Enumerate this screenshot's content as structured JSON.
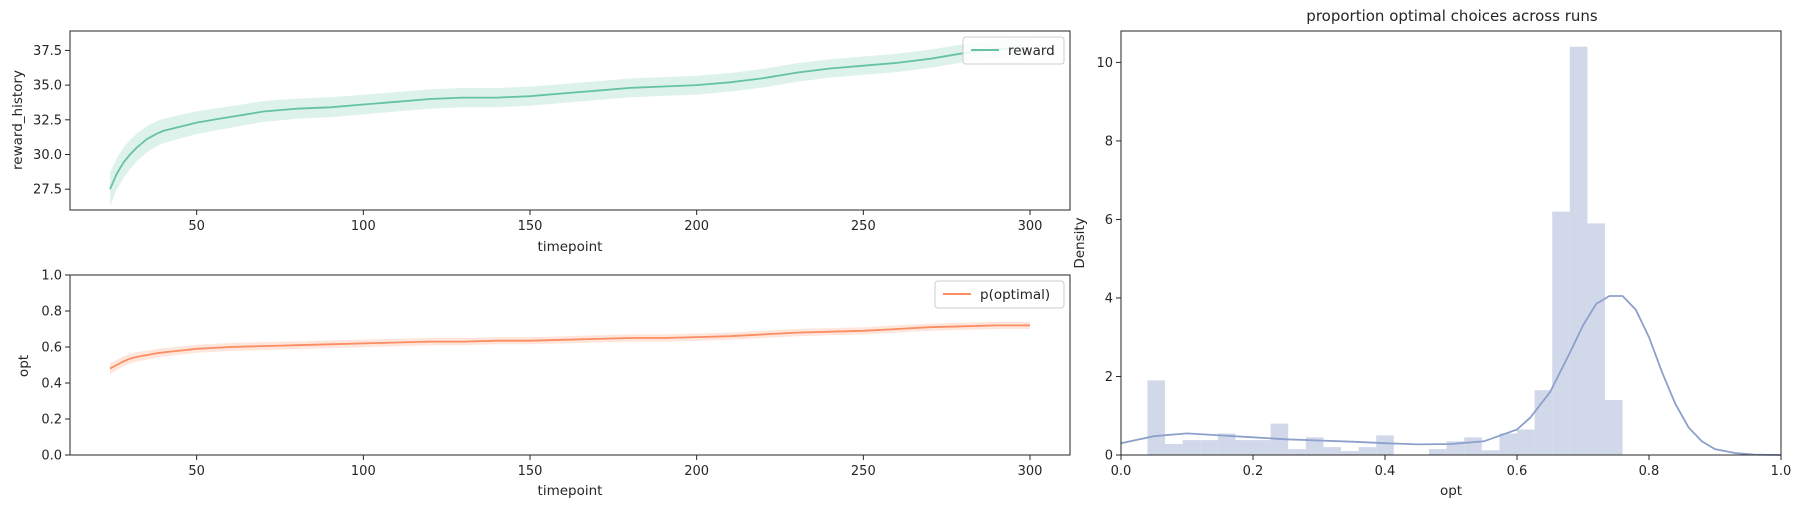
{
  "chart_data": [
    {
      "type": "line",
      "xlabel": "timepoint",
      "ylabel": "reward_history",
      "xlim": [
        12,
        312
      ],
      "ylim": [
        26,
        38.9
      ],
      "xticks": [
        50,
        100,
        150,
        200,
        250,
        300
      ],
      "yticks": [
        27.5,
        30.0,
        32.5,
        35.0,
        37.5
      ],
      "ytick_labels": [
        "27.5",
        "30.0",
        "32.5",
        "35.0",
        "37.5"
      ],
      "legend": "top-right",
      "series": [
        {
          "name": "reward",
          "color": "#66c2a5",
          "band": "confidence interval",
          "x": [
            24,
            26,
            28,
            30,
            32,
            35,
            38,
            40,
            45,
            50,
            55,
            60,
            65,
            70,
            75,
            80,
            90,
            100,
            110,
            120,
            130,
            140,
            150,
            160,
            170,
            180,
            190,
            200,
            210,
            220,
            230,
            240,
            250,
            260,
            270,
            280,
            290,
            300
          ],
          "y": [
            27.5,
            28.6,
            29.4,
            30.0,
            30.5,
            31.1,
            31.5,
            31.7,
            32.0,
            32.3,
            32.5,
            32.7,
            32.9,
            33.1,
            33.2,
            33.3,
            33.4,
            33.6,
            33.8,
            34.0,
            34.1,
            34.1,
            34.2,
            34.4,
            34.6,
            34.8,
            34.9,
            35.0,
            35.2,
            35.5,
            35.9,
            36.2,
            36.4,
            36.6,
            36.9,
            37.3,
            37.6,
            37.7
          ],
          "ci": [
            1.2,
            1.15,
            1.1,
            1.05,
            1.0,
            0.95,
            0.9,
            0.88,
            0.85,
            0.82,
            0.8,
            0.78,
            0.76,
            0.75,
            0.74,
            0.73,
            0.72,
            0.71,
            0.7,
            0.7,
            0.69,
            0.69,
            0.69,
            0.68,
            0.68,
            0.68,
            0.68,
            0.68,
            0.67,
            0.67,
            0.67,
            0.66,
            0.66,
            0.66,
            0.66,
            0.65,
            0.65,
            0.65
          ]
        }
      ]
    },
    {
      "type": "line",
      "xlabel": "timepoint",
      "ylabel": "opt",
      "xlim": [
        12,
        312
      ],
      "ylim": [
        0,
        1
      ],
      "xticks": [
        50,
        100,
        150,
        200,
        250,
        300
      ],
      "yticks": [
        0.0,
        0.2,
        0.4,
        0.6,
        0.8,
        1.0
      ],
      "ytick_labels": [
        "0.0",
        "0.2",
        "0.4",
        "0.6",
        "0.8",
        "1.0"
      ],
      "legend": "top-right",
      "series": [
        {
          "name": "p(optimal)",
          "color": "#fc8d62",
          "band": "confidence interval",
          "x": [
            24,
            26,
            28,
            30,
            32,
            35,
            38,
            40,
            45,
            50,
            55,
            60,
            70,
            80,
            90,
            100,
            110,
            120,
            130,
            140,
            150,
            160,
            170,
            180,
            190,
            200,
            210,
            220,
            230,
            240,
            250,
            260,
            270,
            280,
            290,
            300
          ],
          "y": [
            0.48,
            0.5,
            0.52,
            0.535,
            0.545,
            0.555,
            0.565,
            0.57,
            0.58,
            0.59,
            0.595,
            0.6,
            0.605,
            0.61,
            0.615,
            0.62,
            0.625,
            0.63,
            0.63,
            0.635,
            0.635,
            0.64,
            0.645,
            0.65,
            0.65,
            0.655,
            0.66,
            0.67,
            0.68,
            0.685,
            0.69,
            0.7,
            0.71,
            0.715,
            0.72,
            0.72
          ],
          "ci": [
            0.03,
            0.029,
            0.028,
            0.027,
            0.026,
            0.025,
            0.024,
            0.024,
            0.023,
            0.023,
            0.022,
            0.022,
            0.022,
            0.021,
            0.021,
            0.021,
            0.021,
            0.02,
            0.02,
            0.02,
            0.02,
            0.02,
            0.02,
            0.02,
            0.02,
            0.02,
            0.02,
            0.02,
            0.02,
            0.02,
            0.02,
            0.02,
            0.02,
            0.02,
            0.02,
            0.02
          ]
        }
      ]
    },
    {
      "type": "histogram",
      "title": "proportion optimal choices across runs",
      "xlabel": "opt",
      "ylabel": "Density",
      "xlim": [
        0,
        1
      ],
      "ylim": [
        0,
        10.8
      ],
      "xticks": [
        0.0,
        0.2,
        0.4,
        0.6,
        0.8,
        1.0
      ],
      "xtick_labels": [
        "0.0",
        "0.2",
        "0.4",
        "0.6",
        "0.8",
        "1.0"
      ],
      "yticks": [
        0,
        2,
        4,
        6,
        8,
        10
      ],
      "ytick_labels": [
        "0",
        "2",
        "4",
        "6",
        "8",
        "10"
      ],
      "bar_color": "#d1d8ea",
      "kde_color": "#8da0cb",
      "bin_edges": [
        0.04,
        0.0667,
        0.0933,
        0.12,
        0.1467,
        0.1733,
        0.2,
        0.2267,
        0.2533,
        0.28,
        0.3067,
        0.3333,
        0.36,
        0.3867,
        0.4133,
        0.44,
        0.4667,
        0.4933,
        0.52,
        0.5467,
        0.5733,
        0.6,
        0.6267,
        0.6533,
        0.68,
        0.7067,
        0.7333,
        0.76,
        0.7867,
        0.8133,
        0.84
      ],
      "densities": [
        1.9,
        0.28,
        0.38,
        0.38,
        0.55,
        0.38,
        0.38,
        0.8,
        0.15,
        0.45,
        0.2,
        0.1,
        0.2,
        0.5,
        0.0,
        0.0,
        0.15,
        0.35,
        0.45,
        0.12,
        0.55,
        0.65,
        1.65,
        6.2,
        10.4,
        5.9,
        1.4,
        0.0,
        0.0,
        0.0
      ],
      "kde_x": [
        0.0,
        0.05,
        0.1,
        0.15,
        0.2,
        0.25,
        0.3,
        0.35,
        0.4,
        0.45,
        0.5,
        0.55,
        0.6,
        0.62,
        0.65,
        0.68,
        0.7,
        0.72,
        0.74,
        0.76,
        0.78,
        0.8,
        0.82,
        0.84,
        0.86,
        0.88,
        0.9,
        0.93,
        0.96,
        1.0
      ],
      "kde_y": [
        0.3,
        0.48,
        0.55,
        0.5,
        0.45,
        0.4,
        0.37,
        0.34,
        0.3,
        0.27,
        0.28,
        0.35,
        0.65,
        0.95,
        1.6,
        2.6,
        3.3,
        3.85,
        4.05,
        4.05,
        3.7,
        3.0,
        2.1,
        1.3,
        0.7,
        0.35,
        0.15,
        0.05,
        0.01,
        0.0
      ]
    }
  ]
}
